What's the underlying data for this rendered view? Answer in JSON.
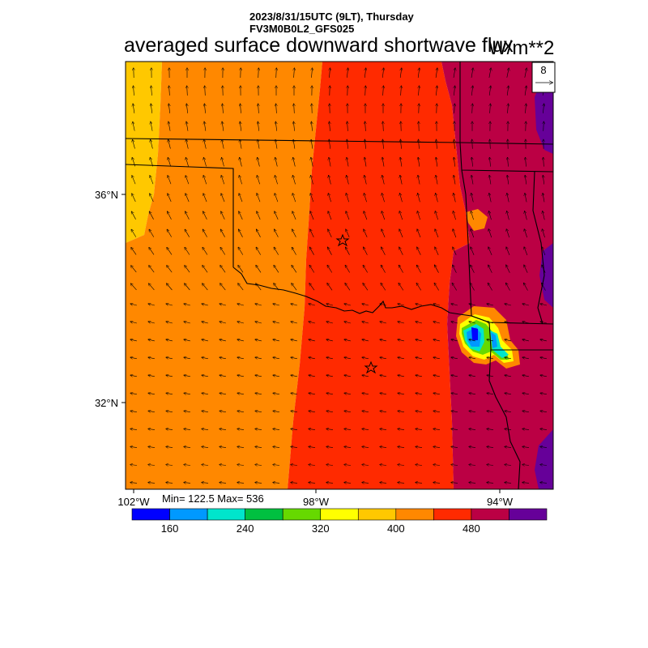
{
  "header": {
    "datetime": "2023/8/31/15UTC (9LT), Thursday",
    "model": "FV3M0B0L2_GFS025",
    "title": "averaged surface downward shortwave flux",
    "units": "W/m**2"
  },
  "map": {
    "lat_labels": [
      "36°N",
      "32°N"
    ],
    "lon_labels": [
      "102°W",
      "98°W",
      "94°W"
    ],
    "markers": [
      "station-star",
      "station-star"
    ]
  },
  "vector_reference": {
    "magnitude": "8"
  },
  "stats": {
    "text": "Min= 122.5 Max= 536",
    "min": 122.5,
    "max": 536
  },
  "colorbar": {
    "colors": [
      "#0000ff",
      "#0099ff",
      "#00e5cc",
      "#00c040",
      "#66d900",
      "#ffff00",
      "#ffc800",
      "#ff8800",
      "#ff2a00",
      "#bb0044",
      "#660099"
    ],
    "labels": [
      "160",
      "240",
      "320",
      "400",
      "480"
    ]
  },
  "field_colors": {
    "yellow": "#ffc800",
    "orange": "#ff8800",
    "red": "#ff2a00",
    "crimson": "#bb0044",
    "purple": "#660099"
  }
}
